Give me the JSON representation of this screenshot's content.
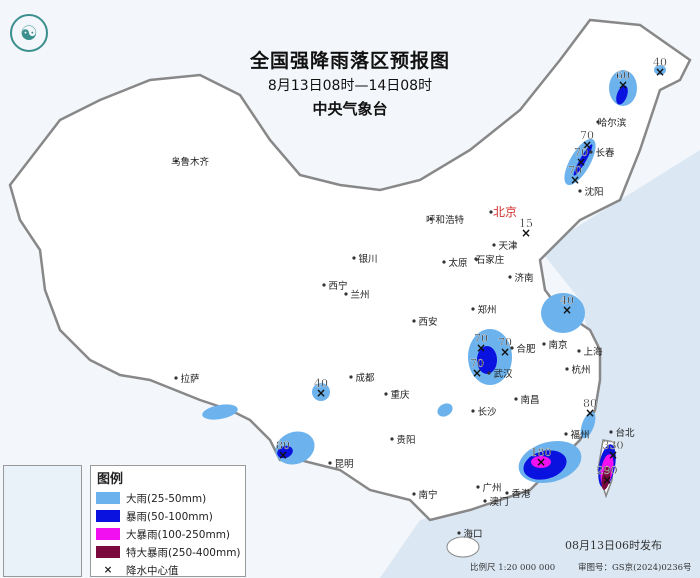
{
  "header": {
    "title": "全国强降雨落区预报图",
    "period": "8月13日08时—14日08时",
    "agency": "中央气象台"
  },
  "legend": {
    "title": "图例",
    "items": [
      {
        "label": "大雨(25-50mm)",
        "color": "#6cb2ec"
      },
      {
        "label": "暴雨(50-100mm)",
        "color": "#0a12e0"
      },
      {
        "label": "大暴雨(100-250mm)",
        "color": "#f010f0"
      },
      {
        "label": "特大暴雨(250-400mm)",
        "color": "#7a0a3e"
      },
      {
        "label": "降水中心值",
        "icon": "x-mark-icon"
      }
    ]
  },
  "cities": [
    "乌鲁木齐",
    "哈尔滨",
    "长春",
    "沈阳",
    "呼和浩特",
    "北京",
    "天津",
    "银川",
    "太原",
    "石家庄",
    "济南",
    "西宁",
    "兰州",
    "西安",
    "郑州",
    "南京",
    "合肥",
    "上海",
    "武汉",
    "拉萨",
    "成都",
    "重庆",
    "杭州",
    "长沙",
    "南昌",
    "福州",
    "台北",
    "贵阳",
    "昆明",
    "南宁",
    "广州",
    "香港",
    "澳门",
    "海口"
  ],
  "rain_centers": [
    "40",
    "60",
    "70",
    "70",
    "70",
    "15",
    "40",
    "70",
    "70",
    "70",
    "40",
    "80",
    "80",
    "180",
    "330",
    "290"
  ],
  "footer": {
    "published": "08月13日06时发布",
    "scale": "比例尺 1:20 000 000",
    "review_no": "审图号：GS京(2024)0236号"
  },
  "colors": {
    "sea": "#dbe8f4",
    "land": "#ffffff",
    "capital": "#d0312d"
  }
}
